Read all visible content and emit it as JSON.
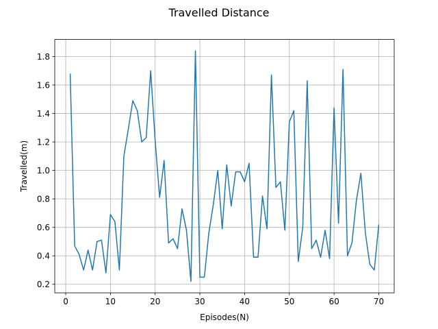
{
  "chart_data": {
    "type": "line",
    "title": "Travelled Distance",
    "xlabel": "Episodes(N)",
    "ylabel": "Travelled(m)",
    "xlim": [
      -2.45,
      73.45
    ],
    "ylim": [
      0.14,
      1.92
    ],
    "x_ticks": [
      0,
      10,
      20,
      30,
      40,
      50,
      60,
      70
    ],
    "x_tick_labels": [
      "0",
      "10",
      "20",
      "30",
      "40",
      "50",
      "60",
      "70"
    ],
    "y_ticks": [
      0.2,
      0.4,
      0.6,
      0.8,
      1.0,
      1.2,
      1.4,
      1.6,
      1.8
    ],
    "y_tick_labels": [
      "0.2",
      "0.4",
      "0.6",
      "0.8",
      "1.0",
      "1.2",
      "1.4",
      "1.6",
      "1.8"
    ],
    "grid": true,
    "series": [
      {
        "color": "#1f77b4",
        "x": [
          1,
          2,
          3,
          4,
          5,
          6,
          7,
          8,
          9,
          10,
          11,
          12,
          13,
          14,
          15,
          16,
          17,
          18,
          19,
          20,
          21,
          22,
          23,
          24,
          25,
          26,
          27,
          28,
          29,
          30,
          31,
          32,
          33,
          34,
          35,
          36,
          37,
          38,
          39,
          40,
          41,
          42,
          43,
          44,
          45,
          46,
          47,
          48,
          49,
          50,
          51,
          52,
          53,
          54,
          55,
          56,
          57,
          58,
          59,
          60,
          61,
          62,
          63,
          64,
          65,
          66,
          67,
          68,
          69,
          70
        ],
        "values": [
          1.68,
          0.47,
          0.41,
          0.3,
          0.44,
          0.3,
          0.5,
          0.51,
          0.28,
          0.69,
          0.64,
          0.3,
          1.1,
          1.29,
          1.49,
          1.42,
          1.2,
          1.23,
          1.7,
          1.21,
          0.81,
          1.07,
          0.49,
          0.52,
          0.45,
          0.73,
          0.58,
          0.22,
          1.84,
          0.25,
          0.25,
          0.56,
          0.76,
          1.0,
          0.59,
          1.04,
          0.75,
          0.99,
          0.99,
          0.92,
          1.05,
          0.39,
          0.39,
          0.82,
          0.59,
          1.67,
          0.88,
          0.92,
          0.58,
          1.34,
          1.42,
          0.36,
          0.6,
          1.63,
          0.45,
          0.51,
          0.39,
          0.58,
          0.38,
          1.44,
          0.63,
          1.71,
          0.4,
          0.49,
          0.79,
          0.98,
          0.56,
          0.34,
          0.3,
          0.62
        ]
      }
    ]
  }
}
